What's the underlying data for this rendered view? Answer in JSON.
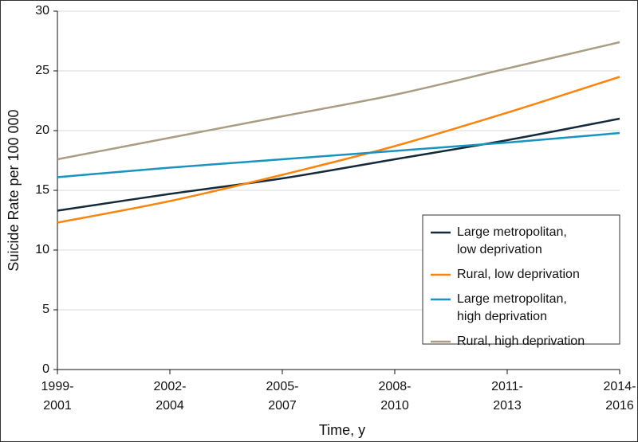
{
  "chart_data": {
    "type": "line",
    "x_label": "Time, y",
    "y_label": "Suicide Rate per 100 000",
    "categories": [
      "1999-2001",
      "2002-2004",
      "2005-2007",
      "2008-2010",
      "2011-2013",
      "2014-2016"
    ],
    "series": [
      {
        "name": "Large metropolitan, low deprivation",
        "color": "#14293a",
        "values": [
          13.3,
          14.7,
          16.0,
          17.6,
          19.2,
          21.0
        ]
      },
      {
        "name": "Rural, low deprivation",
        "color": "#f7850f",
        "values": [
          12.3,
          14.1,
          16.3,
          18.7,
          21.5,
          24.5
        ]
      },
      {
        "name": "Large metropolitan, high deprivation",
        "color": "#1b93c0",
        "values": [
          16.1,
          16.9,
          17.6,
          18.3,
          19.0,
          19.8
        ]
      },
      {
        "name": "Rural, high deprivation",
        "color": "#ab9d84",
        "values": [
          17.6,
          19.4,
          21.2,
          23.0,
          25.2,
          27.4
        ]
      }
    ],
    "ylim": [
      0,
      30
    ],
    "yticks": [
      0,
      5,
      10,
      15,
      20,
      25,
      30
    ],
    "grid": true,
    "legend": "lower right"
  }
}
